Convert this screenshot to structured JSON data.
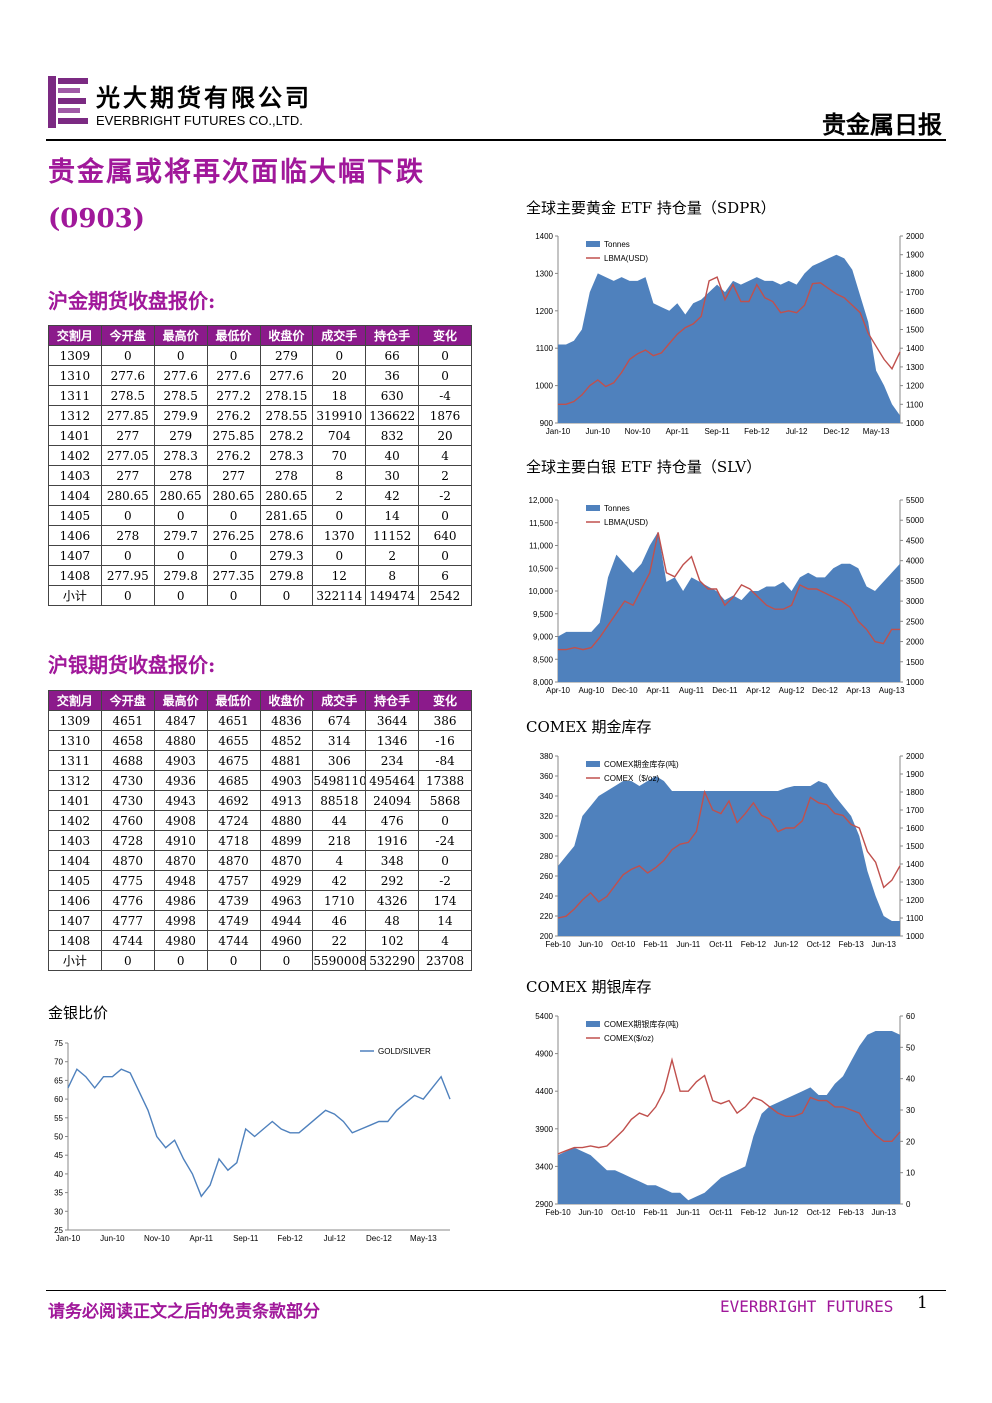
{
  "header": {
    "company_cn": "光大期货有限公司",
    "company_en": "EVERBRIGHT FUTURES CO.,LTD.",
    "report": "贵金属日报"
  },
  "title": "贵金属或将再次面临大幅下跌",
  "date": "(0903)",
  "gold_table": {
    "title": "沪金期货收盘报价:",
    "header": [
      "交割月",
      "今开盘",
      "最高价",
      "最低价",
      "收盘价",
      "成交手",
      "持仓手",
      "变化"
    ],
    "rows": [
      [
        "1309",
        "0",
        "0",
        "0",
        "279",
        "0",
        "66",
        "0"
      ],
      [
        "1310",
        "277.6",
        "277.6",
        "277.6",
        "277.6",
        "20",
        "36",
        "0"
      ],
      [
        "1311",
        "278.5",
        "278.5",
        "277.2",
        "278.15",
        "18",
        "630",
        "-4"
      ],
      [
        "1312",
        "277.85",
        "279.9",
        "276.2",
        "278.55",
        "319910",
        "136622",
        "1876"
      ],
      [
        "1401",
        "277",
        "279",
        "275.85",
        "278.2",
        "704",
        "832",
        "20"
      ],
      [
        "1402",
        "277.05",
        "278.3",
        "276.2",
        "278.3",
        "70",
        "40",
        "4"
      ],
      [
        "1403",
        "277",
        "278",
        "277",
        "278",
        "8",
        "30",
        "2"
      ],
      [
        "1404",
        "280.65",
        "280.65",
        "280.65",
        "280.65",
        "2",
        "42",
        "-2"
      ],
      [
        "1405",
        "0",
        "0",
        "0",
        "281.65",
        "0",
        "14",
        "0"
      ],
      [
        "1406",
        "278",
        "279.7",
        "276.25",
        "278.6",
        "1370",
        "11152",
        "640"
      ],
      [
        "1407",
        "0",
        "0",
        "0",
        "279.3",
        "0",
        "2",
        "0"
      ],
      [
        "1408",
        "277.95",
        "279.8",
        "277.35",
        "279.8",
        "12",
        "8",
        "6"
      ],
      [
        "小计",
        "0",
        "0",
        "0",
        "0",
        "322114",
        "149474",
        "2542"
      ]
    ]
  },
  "silver_table": {
    "title": "沪银期货收盘报价:",
    "header": [
      "交割月",
      "今开盘",
      "最高价",
      "最低价",
      "收盘价",
      "成交手",
      "持仓手",
      "变化"
    ],
    "rows": [
      [
        "1309",
        "4651",
        "4847",
        "4651",
        "4836",
        "674",
        "3644",
        "386"
      ],
      [
        "1310",
        "4658",
        "4880",
        "4655",
        "4852",
        "314",
        "1346",
        "-16"
      ],
      [
        "1311",
        "4688",
        "4903",
        "4675",
        "4881",
        "306",
        "234",
        "-84"
      ],
      [
        "1312",
        "4730",
        "4936",
        "4685",
        "4903",
        "5498110",
        "495464",
        "17388"
      ],
      [
        "1401",
        "4730",
        "4943",
        "4692",
        "4913",
        "88518",
        "24094",
        "5868"
      ],
      [
        "1402",
        "4760",
        "4908",
        "4724",
        "4880",
        "44",
        "476",
        "0"
      ],
      [
        "1403",
        "4728",
        "4910",
        "4718",
        "4899",
        "218",
        "1916",
        "-24"
      ],
      [
        "1404",
        "4870",
        "4870",
        "4870",
        "4870",
        "4",
        "348",
        "0"
      ],
      [
        "1405",
        "4775",
        "4948",
        "4757",
        "4929",
        "42",
        "292",
        "-2"
      ],
      [
        "1406",
        "4776",
        "4986",
        "4739",
        "4963",
        "1710",
        "4326",
        "174"
      ],
      [
        "1407",
        "4777",
        "4998",
        "4749",
        "4944",
        "46",
        "48",
        "14"
      ],
      [
        "1408",
        "4744",
        "4980",
        "4744",
        "4960",
        "22",
        "102",
        "4"
      ],
      [
        "小计",
        "0",
        "0",
        "0",
        "0",
        "5590008",
        "532290",
        "23708"
      ]
    ]
  },
  "chart_data": [
    {
      "type": "combo",
      "title": "全球主要黄金 ETF 持仓量（SDPR）",
      "legend": "upper left",
      "grid": false,
      "categories": [
        "Jan-10",
        null,
        null,
        null,
        null,
        "Jun-10",
        null,
        null,
        null,
        null,
        "Nov-10",
        null,
        null,
        null,
        null,
        "Apr-11",
        null,
        null,
        null,
        null,
        "Sep-11",
        null,
        null,
        null,
        null,
        "Feb-12",
        null,
        null,
        null,
        null,
        "Jul-12",
        null,
        null,
        null,
        null,
        "Dec-12",
        null,
        null,
        null,
        null,
        "May-13",
        null,
        null,
        null
      ],
      "ylim": [
        900,
        1400
      ],
      "yticks": [
        900,
        1000,
        1100,
        1200,
        1300,
        1400
      ],
      "y2lim": [
        1000,
        2000
      ],
      "y2ticks": [
        1000,
        1100,
        1200,
        1300,
        1400,
        1500,
        1600,
        1700,
        1800,
        1900,
        2000
      ],
      "series": [
        {
          "name": "Tonnes",
          "color": "#4f81bd",
          "mark": "area",
          "values": [
            1110,
            1110,
            1120,
            1150,
            1250,
            1300,
            1290,
            1280,
            1290,
            1280,
            1280,
            1290,
            1220,
            1210,
            1200,
            1220,
            1190,
            1220,
            1230,
            1250,
            1270,
            1250,
            1280,
            1270,
            1280,
            1290,
            1280,
            1280,
            1270,
            1280,
            1270,
            1300,
            1320,
            1330,
            1340,
            1350,
            1340,
            1310,
            1240,
            1170,
            1040,
            1000,
            950,
            920
          ]
        },
        {
          "name": "LBMA(USD)",
          "color": "#c0504d",
          "mark": "line",
          "axis": "y2",
          "values": [
            1100,
            1100,
            1115,
            1150,
            1200,
            1230,
            1195,
            1215,
            1270,
            1340,
            1370,
            1390,
            1360,
            1375,
            1425,
            1475,
            1510,
            1530,
            1570,
            1760,
            1780,
            1660,
            1740,
            1650,
            1650,
            1740,
            1670,
            1650,
            1590,
            1600,
            1590,
            1630,
            1745,
            1750,
            1720,
            1690,
            1670,
            1630,
            1590,
            1480,
            1410,
            1340,
            1290,
            1380
          ]
        }
      ]
    },
    {
      "type": "combo",
      "title": "全球主要白银 ETF 持仓量（SLV）",
      "legend": "upper left",
      "grid": false,
      "categories": [
        "Apr-10",
        null,
        null,
        null,
        "Aug-10",
        null,
        null,
        null,
        "Dec-10",
        null,
        null,
        null,
        "Apr-11",
        null,
        null,
        null,
        "Aug-11",
        null,
        null,
        null,
        "Dec-11",
        null,
        null,
        null,
        "Apr-12",
        null,
        null,
        null,
        "Aug-12",
        null,
        null,
        null,
        "Dec-12",
        null,
        null,
        null,
        "Apr-13",
        null,
        null,
        null,
        "Aug-13",
        null
      ],
      "ylim": [
        8000,
        12000
      ],
      "yticks": [
        {
          "value": 8000,
          "label": "8,000"
        },
        {
          "value": 8500,
          "label": "8,500"
        },
        {
          "value": 9000,
          "label": "9,000"
        },
        {
          "value": 9500,
          "label": "9,500"
        },
        {
          "value": 10000,
          "label": "10,000"
        },
        {
          "value": 10500,
          "label": "10,500"
        },
        {
          "value": 11000,
          "label": "11,000"
        },
        {
          "value": 11500,
          "label": "11,500"
        },
        {
          "value": 12000,
          "label": "12,000"
        }
      ],
      "y2lim": [
        1000,
        5500
      ],
      "y2ticks": [
        1000,
        1500,
        2000,
        2500,
        3000,
        3500,
        4000,
        4500,
        5000,
        5500
      ],
      "series": [
        {
          "name": "Tonnes",
          "color": "#4f81bd",
          "mark": "area",
          "values": [
            9000,
            9100,
            9100,
            9100,
            9100,
            9300,
            10300,
            10800,
            10600,
            10400,
            10600,
            11000,
            11300,
            10200,
            10300,
            10000,
            10300,
            10200,
            10100,
            10000,
            9800,
            9900,
            9800,
            10000,
            10000,
            10100,
            10100,
            10200,
            10000,
            10300,
            10400,
            10300,
            10300,
            10500,
            10600,
            10600,
            10500,
            10100,
            10000,
            10200,
            10400,
            10600
          ]
        },
        {
          "name": "LBMA(USD)",
          "color": "#c0504d",
          "mark": "line",
          "axis": "y2",
          "values": [
            1800,
            1800,
            1850,
            1800,
            1850,
            2100,
            2400,
            2700,
            3000,
            2900,
            3300,
            3700,
            4700,
            3700,
            3600,
            3900,
            4100,
            3500,
            3300,
            3300,
            2900,
            3100,
            3400,
            3300,
            3100,
            2900,
            2800,
            2800,
            2900,
            3400,
            3300,
            3300,
            3200,
            3100,
            3000,
            2850,
            2500,
            2300,
            2000,
            1950,
            2300,
            2300
          ]
        }
      ]
    },
    {
      "type": "combo",
      "title": "COMEX 期金库存",
      "legend": "upper left",
      "grid": false,
      "categories": [
        "Feb-10",
        null,
        null,
        null,
        "Jun-10",
        null,
        null,
        null,
        "Oct-10",
        null,
        null,
        null,
        "Feb-11",
        null,
        null,
        null,
        "Jun-11",
        null,
        null,
        null,
        "Oct-11",
        null,
        null,
        null,
        "Feb-12",
        null,
        null,
        null,
        "Jun-12",
        null,
        null,
        null,
        "Oct-12",
        null,
        null,
        null,
        "Feb-13",
        null,
        null,
        null,
        "Jun-13",
        null,
        null
      ],
      "ylim": [
        200,
        380
      ],
      "yticks": [
        200,
        220,
        240,
        260,
        280,
        300,
        320,
        340,
        360,
        380
      ],
      "y2lim": [
        1000,
        2000
      ],
      "y2ticks": [
        1000,
        1100,
        1200,
        1300,
        1400,
        1500,
        1600,
        1700,
        1800,
        1900,
        2000
      ],
      "series": [
        {
          "name": "COMEX期金库存(吨)",
          "color": "#4f81bd",
          "mark": "area",
          "values": [
            270,
            280,
            290,
            320,
            330,
            340,
            345,
            350,
            355,
            355,
            350,
            355,
            360,
            355,
            345,
            345,
            345,
            345,
            345,
            345,
            345,
            345,
            345,
            345,
            345,
            345,
            345,
            345,
            348,
            350,
            350,
            350,
            355,
            352,
            340,
            330,
            320,
            300,
            265,
            240,
            220,
            215,
            215
          ]
        },
        {
          "name": "COMEX（$/oz)",
          "color": "#c0504d",
          "mark": "line",
          "axis": "y2",
          "values": [
            1100,
            1110,
            1150,
            1200,
            1240,
            1190,
            1220,
            1280,
            1340,
            1370,
            1390,
            1350,
            1380,
            1420,
            1480,
            1510,
            1520,
            1580,
            1800,
            1700,
            1680,
            1750,
            1630,
            1680,
            1740,
            1670,
            1650,
            1580,
            1600,
            1600,
            1640,
            1770,
            1740,
            1730,
            1680,
            1670,
            1620,
            1600,
            1470,
            1410,
            1270,
            1310,
            1390
          ]
        }
      ]
    },
    {
      "type": "combo",
      "title": "COMEX 期银库存",
      "legend": "upper left",
      "grid": false,
      "categories": [
        "Feb-10",
        null,
        null,
        null,
        "Jun-10",
        null,
        null,
        null,
        "Oct-10",
        null,
        null,
        null,
        "Feb-11",
        null,
        null,
        null,
        "Jun-11",
        null,
        null,
        null,
        "Oct-11",
        null,
        null,
        null,
        "Feb-12",
        null,
        null,
        null,
        "Jun-12",
        null,
        null,
        null,
        "Oct-12",
        null,
        null,
        null,
        "Feb-13",
        null,
        null,
        null,
        "Jun-13",
        null,
        null
      ],
      "ylim": [
        2900,
        5400
      ],
      "yticks": [
        2900,
        3400,
        3900,
        4400,
        4900,
        5400
      ],
      "y2lim": [
        0,
        60
      ],
      "y2ticks": [
        0,
        10,
        20,
        30,
        40,
        50,
        60
      ],
      "series": [
        {
          "name": "COMEX期银库存(吨)",
          "color": "#4f81bd",
          "mark": "area",
          "values": [
            3550,
            3600,
            3650,
            3600,
            3550,
            3450,
            3350,
            3350,
            3300,
            3250,
            3200,
            3150,
            3150,
            3100,
            3050,
            3050,
            2950,
            3000,
            3050,
            3150,
            3250,
            3300,
            3350,
            3400,
            3800,
            4100,
            4200,
            4250,
            4300,
            4350,
            4400,
            4450,
            4350,
            4350,
            4500,
            4600,
            4800,
            5000,
            5150,
            5200,
            5200,
            5200,
            5150
          ]
        },
        {
          "name": "COMEX($/oz)",
          "color": "#c0504d",
          "mark": "line",
          "axis": "y2",
          "values": [
            16,
            17,
            18,
            18,
            18.5,
            18,
            18.5,
            21,
            23.5,
            27,
            29,
            28,
            31,
            36,
            46,
            36,
            36,
            39,
            41,
            33,
            32,
            33,
            29,
            31,
            34,
            33,
            31,
            29,
            28,
            28,
            29,
            34,
            33,
            33,
            31,
            31,
            30,
            29,
            25,
            22,
            20,
            20,
            23
          ]
        }
      ]
    },
    {
      "type": "line",
      "title": "金银比价",
      "legend": "upper right",
      "grid": false,
      "categories": [
        "Jan-10",
        null,
        null,
        null,
        null,
        "Jun-10",
        null,
        null,
        null,
        null,
        "Nov-10",
        null,
        null,
        null,
        null,
        "Apr-11",
        null,
        null,
        null,
        null,
        "Sep-11",
        null,
        null,
        null,
        null,
        "Feb-12",
        null,
        null,
        null,
        null,
        "Jul-12",
        null,
        null,
        null,
        null,
        "Dec-12",
        null,
        null,
        null,
        null,
        "May-13",
        null,
        null,
        null
      ],
      "ylim": [
        25,
        75
      ],
      "yticks": [
        25,
        30,
        35,
        40,
        45,
        50,
        55,
        60,
        65,
        70,
        75
      ],
      "series": [
        {
          "name": "GOLD/SILVER",
          "color": "#4f81bd",
          "mark": "line",
          "values": [
            63,
            68,
            66,
            63,
            66,
            66,
            68,
            67,
            62,
            57,
            50,
            47,
            49,
            44,
            40,
            34,
            37,
            44,
            41,
            43,
            52,
            50,
            52,
            54,
            52,
            51,
            51,
            53,
            55,
            57,
            56,
            54,
            51,
            52,
            53,
            54,
            54,
            57,
            59,
            61,
            60,
            63,
            66,
            60
          ]
        }
      ]
    }
  ],
  "footer": {
    "disclaimer": "请务必阅读正文之后的免责条款部分",
    "brand": "EVERBRIGHT FUTURES",
    "page": "1"
  }
}
